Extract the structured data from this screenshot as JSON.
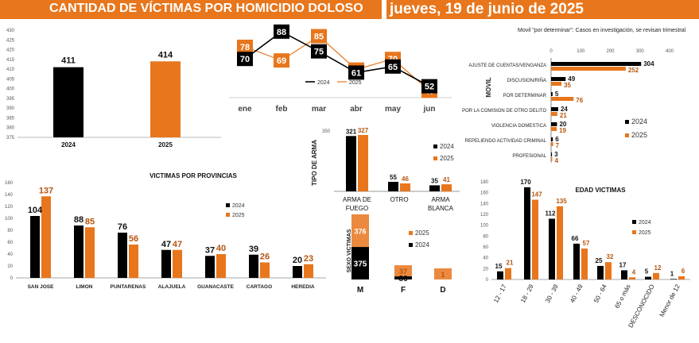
{
  "header": {
    "title": "CANTIDAD DE VÍCTIMAS POR HOMICIDIO DOLOSO",
    "date": "jueves, 19 de junio de 2025"
  },
  "colors": {
    "y2024": "#000000",
    "y2025": "#e8761c",
    "header_bg": "#e8761c"
  },
  "chart_data": [
    {
      "id": "annual",
      "type": "bar",
      "title": "",
      "categories": [
        "2024",
        "2025"
      ],
      "values": [
        411,
        414
      ],
      "ylim": [
        375,
        430
      ],
      "yticks": [
        375,
        380,
        385,
        390,
        395,
        400,
        405,
        410,
        415,
        420,
        425,
        430
      ]
    },
    {
      "id": "monthly",
      "type": "line",
      "title": "",
      "categories": [
        "ene",
        "feb",
        "mar",
        "abr",
        "may",
        "jun"
      ],
      "series": [
        {
          "name": "2024",
          "values": [
            70,
            88,
            75,
            61,
            65,
            52
          ]
        },
        {
          "name": "2025",
          "values": [
            78,
            69,
            85,
            63,
            70,
            49
          ]
        }
      ],
      "legend": "bottom"
    },
    {
      "id": "movil",
      "type": "bar",
      "orientation": "horizontal",
      "title": "Movil \"por determinar\": Casos en investigación, se revisan trimestral",
      "ylabel": "MOVIL",
      "xlim": [
        0,
        400
      ],
      "xticks": [
        0,
        100,
        200,
        300,
        400
      ],
      "categories": [
        "AJUSTE DE CUENTAS/VENGANZA",
        "DISCUSION/RIÑA",
        "POR DETERMINAR",
        "POR LA COMISION DE OTRO DELITO",
        "VIOLENCIA DOMESTICA",
        "REPELIENDO ACTIVIDAD CRIMINAL",
        "PROFESIONAL"
      ],
      "series": [
        {
          "name": "2024",
          "values": [
            304,
            49,
            5,
            24,
            20,
            6,
            3
          ]
        },
        {
          "name": "2025",
          "values": [
            252,
            35,
            76,
            21,
            19,
            7,
            4
          ]
        }
      ],
      "legend": "right"
    },
    {
      "id": "arma",
      "type": "bar",
      "title": "",
      "ylabel": "TIPO DE ARMA",
      "categories": [
        "ARMA DE FUEGO",
        "OTRO",
        "ARMA BLANCA"
      ],
      "series": [
        {
          "name": "2024",
          "values": [
            321,
            55,
            35
          ]
        },
        {
          "name": "2025",
          "values": [
            327,
            46,
            41
          ]
        }
      ],
      "ylim": [
        0,
        350
      ],
      "yticks": [
        0,
        50,
        100,
        150,
        200,
        250,
        300,
        350
      ],
      "legend": "right"
    },
    {
      "id": "provincias",
      "type": "bar",
      "title": "VICTIMAS POR PROVINCIAS",
      "categories": [
        "SAN JOSE",
        "LIMON",
        "PUNTARENAS",
        "ALAJUELA",
        "GUANACASTE",
        "CARTAGO",
        "HEREDIA"
      ],
      "series": [
        {
          "name": "2024",
          "values": [
            104,
            88,
            76,
            47,
            37,
            39,
            20
          ]
        },
        {
          "name": "2025",
          "values": [
            137,
            85,
            56,
            47,
            40,
            26,
            23
          ]
        }
      ],
      "ylim": [
        0,
        160
      ],
      "yticks": [
        0,
        20,
        40,
        60,
        80,
        100,
        120,
        140,
        160
      ],
      "legend": "right"
    },
    {
      "id": "sexo",
      "type": "bar",
      "stacked": true,
      "title": "",
      "ylabel": "SEXO VICTIMAS",
      "categories": [
        "M",
        "F",
        "D"
      ],
      "series": [
        {
          "name": "2024",
          "values": [
            375,
            36,
            0
          ]
        },
        {
          "name": "2025",
          "values": [
            376,
            37,
            1
          ]
        }
      ],
      "legend": "right"
    },
    {
      "id": "edad",
      "type": "bar",
      "title": "EDAD VICTIMAS",
      "categories": [
        "12 - 17",
        "18 - 29",
        "30 - 39",
        "40 - 49",
        "50 - 64",
        "65 o más",
        "DESCONOCIDO",
        "Menor de 12"
      ],
      "series": [
        {
          "name": "2024",
          "values": [
            15,
            170,
            112,
            66,
            25,
            17,
            5,
            1
          ]
        },
        {
          "name": "2025",
          "values": [
            21,
            147,
            135,
            57,
            32,
            4,
            12,
            6
          ]
        }
      ],
      "ylim": [
        0,
        180
      ],
      "yticks": [
        0,
        20,
        40,
        60,
        80,
        100,
        120,
        140,
        160,
        180
      ],
      "legend": "right"
    }
  ]
}
